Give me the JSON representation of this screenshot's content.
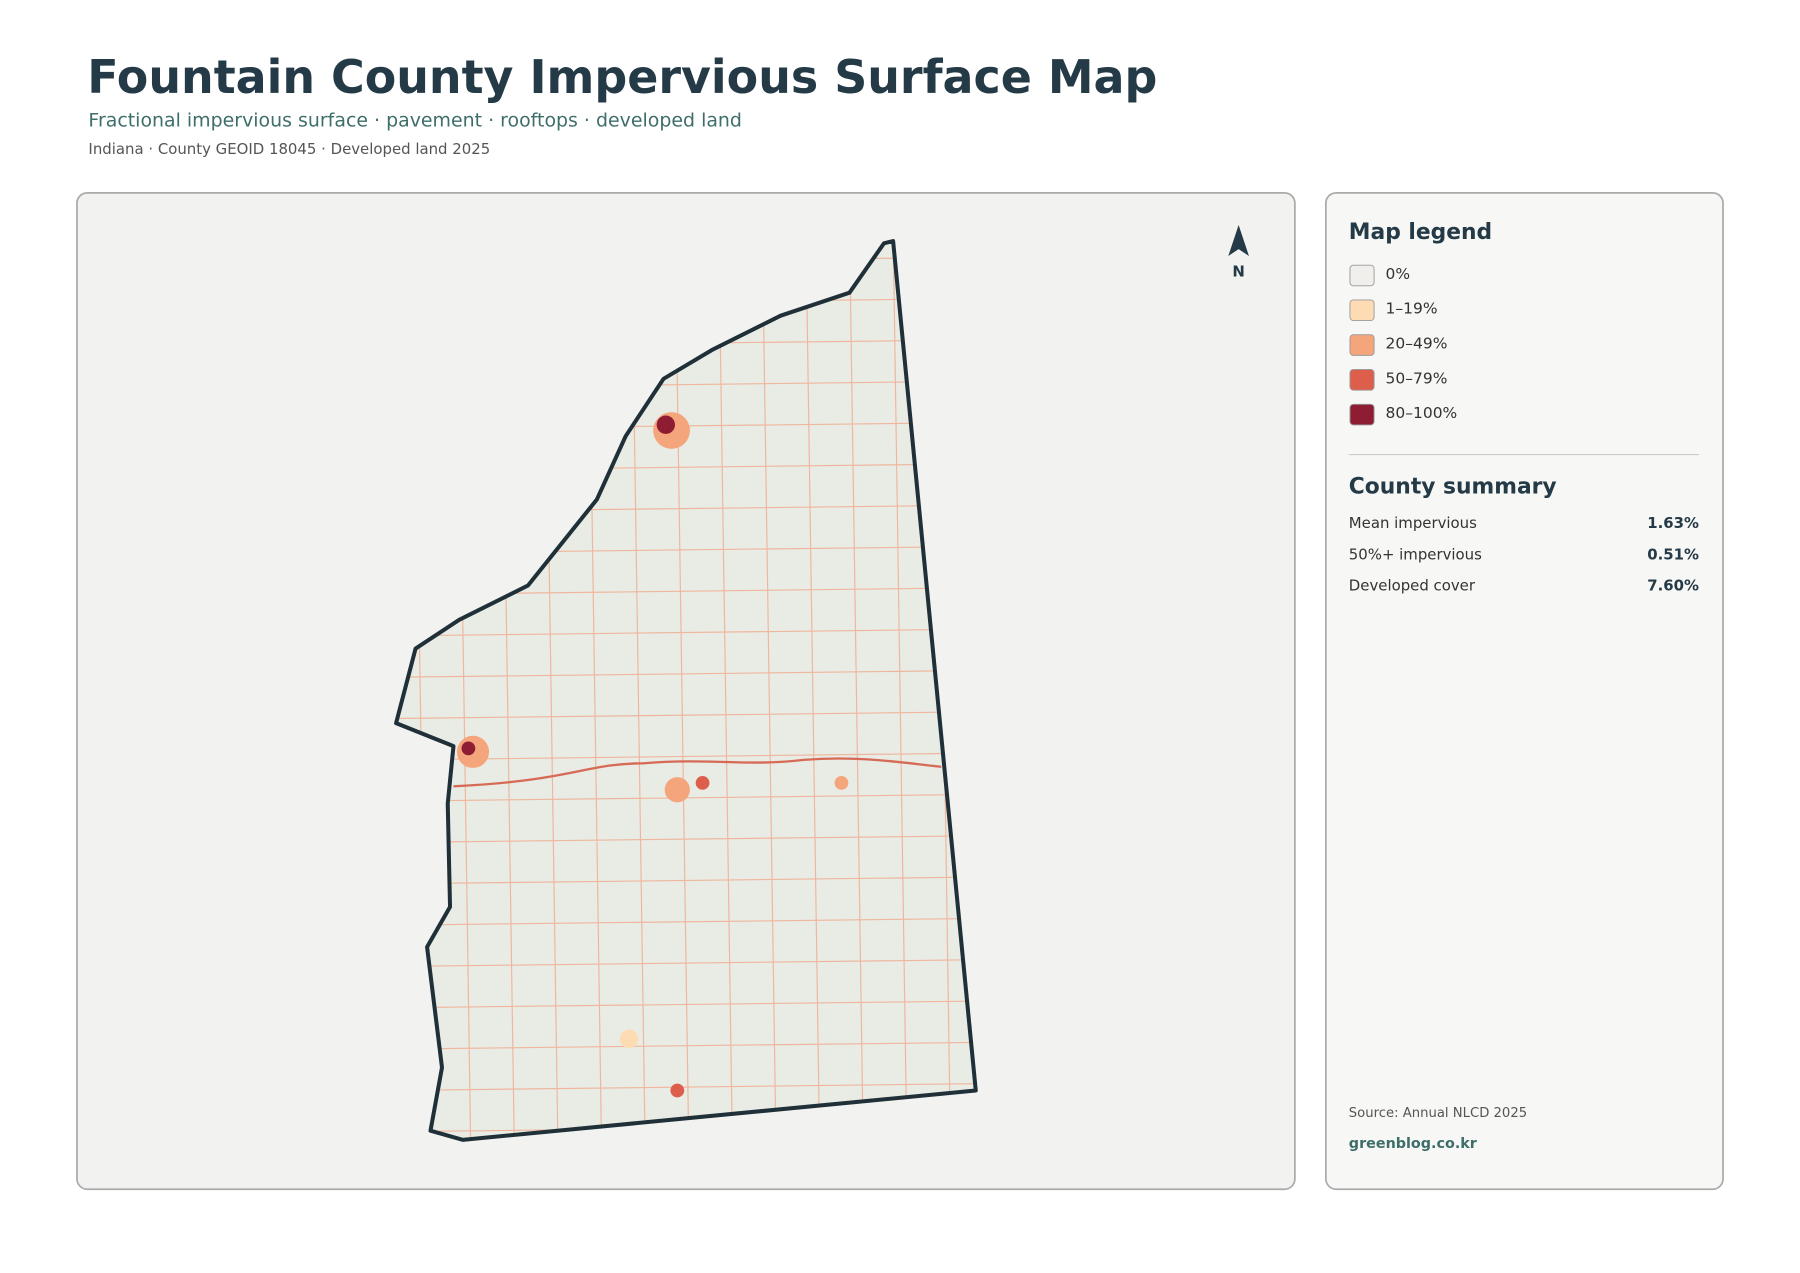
{
  "header": {
    "title": "Fountain County Impervious Surface Map",
    "subtitle": "Fractional impervious surface · pavement · rooftops · developed land",
    "meta": "Indiana · County GEOID 18045 · Developed land 2025"
  },
  "map": {
    "north_label": "N"
  },
  "legend": {
    "title": "Map legend",
    "items": [
      {
        "label": "0%",
        "color": "#f0efeb"
      },
      {
        "label": "1–19%",
        "color": "#fddcb4"
      },
      {
        "label": "20–49%",
        "color": "#f4a57c"
      },
      {
        "label": "50–79%",
        "color": "#dd5e4b"
      },
      {
        "label": "80–100%",
        "color": "#8e1c32"
      }
    ]
  },
  "summary": {
    "title": "County summary",
    "rows": [
      {
        "label": "Mean impervious",
        "value": "1.63%"
      },
      {
        "label": "50%+ impervious",
        "value": "0.51%"
      },
      {
        "label": "Developed cover",
        "value": "7.60%"
      }
    ]
  },
  "footer": {
    "source": "Source: Annual NLCD 2025",
    "credit": "greenblog.co.kr"
  }
}
